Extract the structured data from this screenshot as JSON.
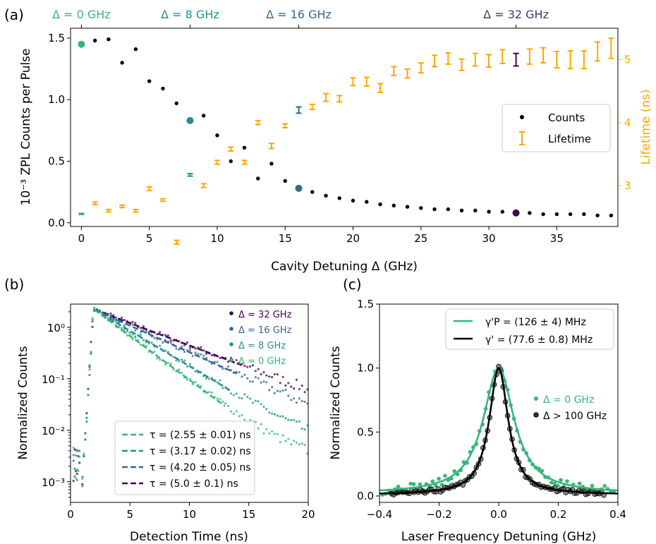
{
  "colors": {
    "viridis_0": "#35b779",
    "viridis_8": "#21918c",
    "viridis_16": "#31688e",
    "viridis_32": "#440154",
    "orange": "#ffa500",
    "black": "#000000"
  },
  "chart_data": [
    {
      "panel": "(a)",
      "type": "scatter",
      "xlabel": "Cavity Detuning Δ (GHz)",
      "ylabel": "10⁻³ ZPL Counts per Pulse",
      "y2label": "Lifetime (ns)",
      "xlim": [
        -0.8,
        39.5
      ],
      "ylim": [
        -0.03,
        1.58
      ],
      "y2lim": [
        2.35,
        5.5
      ],
      "xticks": [
        "0",
        "5",
        "10",
        "15",
        "20",
        "25",
        "30",
        "35"
      ],
      "yticks": [
        "0.0",
        "0.5",
        "1.0",
        "1.5"
      ],
      "y2ticks": [
        "3",
        "4",
        "5"
      ],
      "top_ticks": [
        {
          "x": 0,
          "label": "Δ = 0 GHz",
          "color": "#35b779"
        },
        {
          "x": 8,
          "label": "Δ = 8 GHz",
          "color": "#21918c"
        },
        {
          "x": 16,
          "label": "Δ = 16 GHz",
          "color": "#31688e"
        },
        {
          "x": 32,
          "label": "Δ = 32 GHz",
          "color": "#46357a"
        }
      ],
      "legend": {
        "position": "center-right",
        "entries": [
          "Counts",
          "Lifetime"
        ]
      },
      "series": [
        {
          "name": "Counts",
          "axis": "left",
          "x": [
            0,
            1,
            2,
            3,
            4,
            5,
            6,
            7,
            8,
            9,
            10,
            11,
            12,
            13,
            14,
            15,
            16,
            17,
            18,
            19,
            20,
            21,
            22,
            23,
            24,
            25,
            26,
            27,
            28,
            29,
            30,
            31,
            32,
            33,
            34,
            35,
            36,
            37,
            38,
            39
          ],
          "y": [
            1.45,
            1.48,
            1.49,
            1.3,
            1.41,
            1.15,
            1.09,
            0.97,
            0.83,
            0.87,
            0.71,
            0.5,
            0.61,
            0.36,
            0.48,
            0.34,
            0.28,
            0.25,
            0.22,
            0.2,
            0.18,
            0.17,
            0.15,
            0.14,
            0.13,
            0.12,
            0.11,
            0.11,
            0.1,
            0.1,
            0.09,
            0.09,
            0.08,
            0.08,
            0.07,
            0.07,
            0.07,
            0.07,
            0.06,
            0.06
          ],
          "highlighted": [
            {
              "x": 0,
              "y": 1.45,
              "color": "#35b779"
            },
            {
              "x": 8,
              "y": 0.83,
              "color": "#21918c"
            },
            {
              "x": 16,
              "y": 0.28,
              "color": "#31688e"
            },
            {
              "x": 32,
              "y": 0.08,
              "color": "#440154"
            }
          ]
        },
        {
          "name": "Lifetime",
          "axis": "right",
          "x": [
            0,
            1,
            2,
            3,
            4,
            5,
            6,
            7,
            8,
            9,
            10,
            11,
            12,
            13,
            14,
            15,
            16,
            17,
            18,
            19,
            20,
            21,
            22,
            23,
            24,
            25,
            26,
            27,
            28,
            29,
            30,
            31,
            32,
            33,
            34,
            35,
            36,
            37,
            38,
            39
          ],
          "y": [
            2.55,
            2.72,
            2.6,
            2.67,
            2.6,
            2.95,
            2.77,
            2.1,
            3.17,
            3.0,
            3.37,
            3.58,
            3.37,
            4.0,
            3.63,
            3.95,
            4.2,
            4.25,
            4.4,
            4.38,
            4.65,
            4.65,
            4.55,
            4.82,
            4.78,
            4.87,
            4.98,
            5.02,
            4.92,
            5.0,
            4.98,
            5.05,
            5.0,
            5.05,
            5.07,
            5.0,
            5.0,
            5.0,
            5.13,
            5.18
          ],
          "err": [
            0.01,
            0.02,
            0.02,
            0.02,
            0.02,
            0.03,
            0.02,
            0.03,
            0.02,
            0.03,
            0.03,
            0.03,
            0.03,
            0.03,
            0.04,
            0.03,
            0.05,
            0.04,
            0.06,
            0.05,
            0.06,
            0.07,
            0.07,
            0.07,
            0.07,
            0.08,
            0.09,
            0.09,
            0.09,
            0.1,
            0.1,
            0.11,
            0.1,
            0.12,
            0.12,
            0.13,
            0.14,
            0.14,
            0.15,
            0.16
          ],
          "highlighted": [
            {
              "x": 0,
              "color": "#35b779"
            },
            {
              "x": 8,
              "color": "#21918c"
            },
            {
              "x": 16,
              "color": "#31688e"
            },
            {
              "x": 32,
              "color": "#440154"
            }
          ]
        }
      ]
    },
    {
      "panel": "(b)",
      "type": "scatter",
      "xlabel": "Detection Time (ns)",
      "ylabel": "Normalized Counts",
      "xlim": [
        0,
        20
      ],
      "ylim_log10": [
        -3.4,
        0.45
      ],
      "yscale": "log",
      "xticks": [
        "0",
        "5",
        "10",
        "15",
        "20"
      ],
      "yticks": [
        "10⁻³",
        "10⁻²",
        "10⁻¹",
        "10⁰"
      ],
      "legend_top": {
        "position": "top-right",
        "entries": [
          "Δ = 32 GHz",
          "Δ = 16 GHz",
          "Δ = 8 GHz",
          "Δ = 0 GHz"
        ]
      },
      "legend_bottom": {
        "position": "bottom-center",
        "entries": [
          "τ = (2.55 ± 0.01) ns",
          "τ = (3.17 ± 0.02) ns",
          "τ = (4.20 ± 0.05) ns",
          "τ = (5.0 ± 0.1) ns"
        ]
      },
      "series": [
        {
          "name": "Δ = 0 GHz",
          "fit_label": "τ = (2.55 ± 0.01) ns",
          "tau": 2.55,
          "color": "#35b779",
          "fit_range": [
            2,
            13
          ]
        },
        {
          "name": "Δ = 8 GHz",
          "fit_label": "τ = (3.17 ± 0.02) ns",
          "tau": 3.17,
          "color": "#21918c",
          "fit_range": [
            2,
            13.5
          ]
        },
        {
          "name": "Δ = 16 GHz",
          "fit_label": "τ = (4.20 ± 0.05) ns",
          "tau": 4.2,
          "color": "#31688e",
          "fit_range": [
            2,
            14
          ]
        },
        {
          "name": "Δ = 32 GHz",
          "fit_label": "τ = (5.0 ± 0.1) ns",
          "tau": 5.0,
          "color": "#440154",
          "fit_range": [
            2,
            14.5
          ]
        }
      ]
    },
    {
      "panel": "(c)",
      "type": "scatter",
      "xlabel": "Laser Frequency Detuning (GHz)",
      "ylabel": "Normalized Counts",
      "xlim": [
        -0.4,
        0.4
      ],
      "ylim": [
        -0.05,
        1.5
      ],
      "xticks": [
        "−0.4",
        "−0.2",
        "0.0",
        "0.2",
        "0.4"
      ],
      "yticks": [
        "0.0",
        "0.5",
        "1.0",
        "1.5"
      ],
      "legend_fit": {
        "position": "top-center",
        "entries": [
          "γ'P = (126 ± 4) MHz",
          "γ' = (77.6 ± 0.8) MHz"
        ]
      },
      "legend_data": {
        "position": "center-right",
        "entries": [
          "Δ = 0 GHz",
          "Δ > 100 GHz"
        ]
      },
      "series": [
        {
          "name": "Δ = 0 GHz",
          "fit_label": "γ'P = (126 ± 4) MHz",
          "fwhm_mhz": 126,
          "color": "#35b779",
          "offset": 0.02
        },
        {
          "name": "Δ > 100 GHz",
          "fit_label": "γ' = (77.6 ± 0.8) MHz",
          "fwhm_mhz": 77.6,
          "color": "#000000",
          "offset": 0.01
        }
      ]
    }
  ],
  "panels": {
    "a": "(a)",
    "b": "(b)",
    "c": "(c)"
  }
}
